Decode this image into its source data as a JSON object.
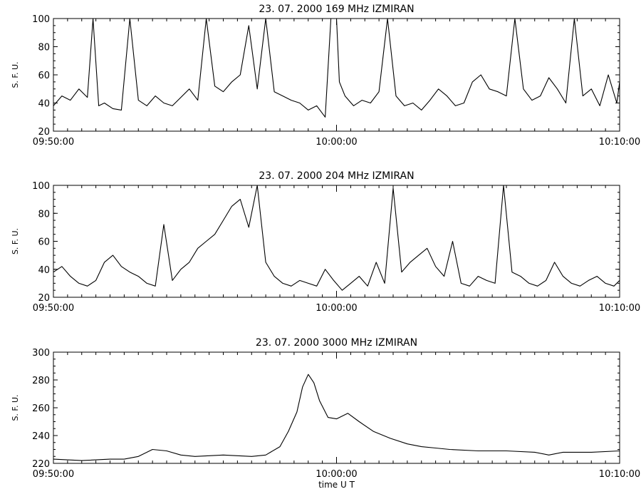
{
  "chart_data": [
    {
      "type": "line",
      "title": "23.  07.  2000    169  MHz    IZMIRAN",
      "ylabel": "S. F. U.",
      "xlabel": "",
      "ylim": [
        20,
        100
      ],
      "yticks": [
        20,
        40,
        60,
        80,
        100
      ],
      "xlim_minutes": [
        0,
        20
      ],
      "x_tick_labels": [
        "09:50:00",
        "10:00:00",
        "10:10:00"
      ],
      "series": [
        {
          "t_minutes": [
            0.0,
            0.3,
            0.6,
            0.9,
            1.2,
            1.4,
            1.6,
            1.8,
            2.1,
            2.4,
            2.7,
            3.0,
            3.3,
            3.6,
            3.9,
            4.2,
            4.5,
            4.8,
            5.1,
            5.4,
            5.7,
            6.0,
            6.3,
            6.6,
            6.9,
            7.2,
            7.5,
            7.8,
            8.1,
            8.4,
            8.7,
            9.0,
            9.3,
            9.6,
            9.8,
            10.0,
            10.1,
            10.3,
            10.6,
            10.9,
            11.2,
            11.5,
            11.8,
            12.1,
            12.4,
            12.7,
            13.0,
            13.3,
            13.6,
            13.9,
            14.2,
            14.5,
            14.8,
            15.1,
            15.4,
            15.7,
            16.0,
            16.3,
            16.6,
            16.9,
            17.2,
            17.5,
            17.8,
            18.1,
            18.4,
            18.7,
            19.0,
            19.3,
            19.6,
            19.9,
            20.0
          ],
          "values": [
            38,
            45,
            42,
            50,
            44,
            100,
            38,
            40,
            36,
            35,
            100,
            42,
            38,
            45,
            40,
            38,
            44,
            50,
            42,
            100,
            52,
            48,
            55,
            60,
            95,
            50,
            100,
            48,
            45,
            42,
            40,
            35,
            38,
            30,
            100,
            100,
            55,
            45,
            38,
            42,
            40,
            48,
            100,
            45,
            38,
            40,
            35,
            42,
            50,
            45,
            38,
            40,
            55,
            60,
            50,
            48,
            45,
            100,
            50,
            42,
            45,
            58,
            50,
            40,
            100,
            45,
            50,
            38,
            60,
            40,
            55
          ]
        }
      ]
    },
    {
      "type": "line",
      "title": "23.  07.  2000    204  MHz    IZMIRAN",
      "ylabel": "S. F. U.",
      "xlabel": "",
      "ylim": [
        20,
        100
      ],
      "yticks": [
        20,
        40,
        60,
        80,
        100
      ],
      "xlim_minutes": [
        0,
        20
      ],
      "x_tick_labels": [
        "09:50:00",
        "10:00:00",
        "10:10:00"
      ],
      "series": [
        {
          "t_minutes": [
            0.0,
            0.3,
            0.6,
            0.9,
            1.2,
            1.5,
            1.8,
            2.1,
            2.4,
            2.7,
            3.0,
            3.3,
            3.6,
            3.9,
            4.2,
            4.5,
            4.8,
            5.1,
            5.4,
            5.7,
            6.0,
            6.3,
            6.6,
            6.9,
            7.2,
            7.5,
            7.8,
            8.1,
            8.4,
            8.7,
            9.0,
            9.3,
            9.6,
            9.9,
            10.2,
            10.5,
            10.8,
            11.1,
            11.4,
            11.7,
            12.0,
            12.3,
            12.6,
            12.9,
            13.2,
            13.5,
            13.8,
            14.1,
            14.4,
            14.7,
            15.0,
            15.3,
            15.6,
            15.9,
            16.2,
            16.5,
            16.8,
            17.1,
            17.4,
            17.7,
            18.0,
            18.3,
            18.6,
            18.9,
            19.2,
            19.5,
            19.8,
            20.0
          ],
          "values": [
            38,
            42,
            35,
            30,
            28,
            32,
            45,
            50,
            42,
            38,
            35,
            30,
            28,
            72,
            32,
            40,
            45,
            55,
            60,
            65,
            75,
            85,
            90,
            70,
            100,
            45,
            35,
            30,
            28,
            32,
            30,
            28,
            40,
            32,
            25,
            30,
            35,
            28,
            45,
            30,
            98,
            38,
            45,
            50,
            55,
            42,
            35,
            60,
            30,
            28,
            35,
            32,
            30,
            100,
            38,
            35,
            30,
            28,
            32,
            45,
            35,
            30,
            28,
            32,
            35,
            30,
            28,
            32
          ]
        }
      ]
    },
    {
      "type": "line",
      "title": "23.  07.  2000     3000  MHz     IZMIRAN",
      "ylabel": "S. F. U.",
      "xlabel": "time   U T",
      "ylim": [
        220,
        300
      ],
      "yticks": [
        220,
        240,
        260,
        280,
        300
      ],
      "xlim_minutes": [
        0,
        20
      ],
      "x_tick_labels": [
        "09:50:00",
        "10:00:00",
        "10:10:00"
      ],
      "series": [
        {
          "t_minutes": [
            0.0,
            1.0,
            2.0,
            2.5,
            3.0,
            3.5,
            4.0,
            4.5,
            5.0,
            6.0,
            7.0,
            7.5,
            8.0,
            8.3,
            8.6,
            8.8,
            9.0,
            9.2,
            9.4,
            9.7,
            10.0,
            10.4,
            10.8,
            11.3,
            11.9,
            12.5,
            13.0,
            13.5,
            14.0,
            15.0,
            16.0,
            17.0,
            17.5,
            18.0,
            19.0,
            20.0
          ],
          "values": [
            223,
            222,
            223,
            223,
            225,
            230,
            229,
            226,
            225,
            226,
            225,
            226,
            232,
            243,
            257,
            275,
            284,
            278,
            265,
            253,
            252,
            256,
            250,
            243,
            238,
            234,
            232,
            231,
            230,
            229,
            229,
            228,
            226,
            228,
            228,
            229
          ]
        }
      ]
    }
  ]
}
